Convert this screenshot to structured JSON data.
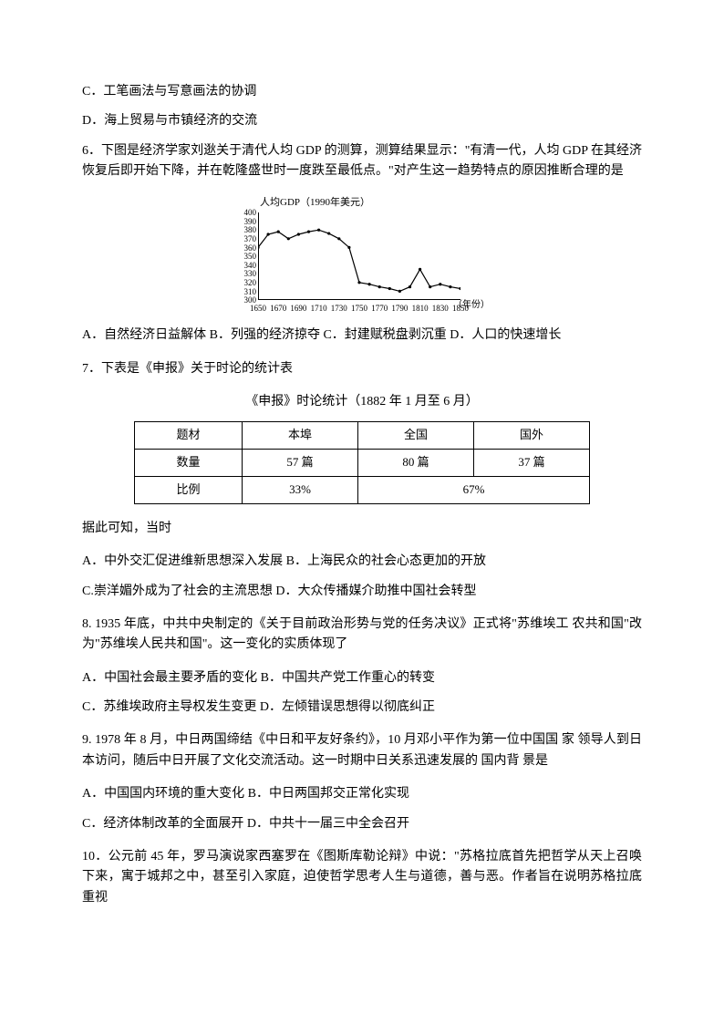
{
  "prev_options": {
    "c": "C．工笔画法与写意画法的协调",
    "d": "D．海上贸易与市镇经济的交流"
  },
  "q6": {
    "intro": "6．下图是经济学家刘逖关于清代人均 GDP 的测算，测算结果显示：\"有清一代，人均 GDP 在其经济恢复后即开始下降，并在乾隆盛世时一度跌至最低点。\"对产生这一趋势特点的原因推断合理的是",
    "chart": {
      "title": "人均GDP（1990年美元）",
      "y_ticks": [
        400,
        390,
        380,
        370,
        360,
        350,
        340,
        330,
        320,
        310,
        300
      ],
      "x_ticks": [
        1650,
        1670,
        1690,
        1710,
        1730,
        1750,
        1770,
        1790,
        1810,
        1830,
        1850
      ],
      "x_label": "（年份）",
      "data": [
        [
          1650,
          360
        ],
        [
          1660,
          375
        ],
        [
          1670,
          378
        ],
        [
          1680,
          370
        ],
        [
          1690,
          375
        ],
        [
          1700,
          378
        ],
        [
          1710,
          380
        ],
        [
          1720,
          376
        ],
        [
          1730,
          370
        ],
        [
          1740,
          360
        ],
        [
          1750,
          320
        ],
        [
          1760,
          318
        ],
        [
          1770,
          315
        ],
        [
          1780,
          313
        ],
        [
          1790,
          310
        ],
        [
          1800,
          315
        ],
        [
          1810,
          335
        ],
        [
          1820,
          315
        ],
        [
          1830,
          318
        ],
        [
          1840,
          315
        ],
        [
          1850,
          313
        ]
      ],
      "line_color": "#000000",
      "marker_color": "#000000",
      "bg": "#ffffff"
    },
    "options_line": "A．自然经济日益解体 B．列强的经济掠夺 C．封建赋税盘剥沉重 D．人口的快速增长"
  },
  "q7": {
    "intro": "7．下表是《申报》关于时论的统计表",
    "table_title": "《申报》时论统计（1882 年 1 月至 6 月）",
    "table": {
      "headers": [
        "题材",
        "本埠",
        "全国",
        "国外"
      ],
      "row1": [
        "数量",
        "57 篇",
        "80 篇",
        "37 篇"
      ],
      "row2_label": "比例",
      "row2_a": "33%",
      "row2_b": "67%"
    },
    "after": "据此可知，当时",
    "opts1": "A．中外交汇促进维新思想深入发展  B．上海民众的社会心态更加的开放",
    "opts2": "C.崇洋媚外成为了社会的主流思想  D．大众传播媒介助推中国社会转型"
  },
  "q8": {
    "intro": "8. 1935 年底，中共中央制定的《关于目前政治形势与党的任务决议》正式将\"苏维埃工 农共和国\"改为\"苏维埃人民共和国\"。这一变化的实质体现了",
    "opts1": "A．中国社会最主要矛盾的变化  B．中国共产党工作重心的转变",
    "opts2": "C．苏维埃政府主导权发生变更  D．左倾错误思想得以彻底纠正"
  },
  "q9": {
    "intro": "9. 1978 年 8 月，中日两国缔结《中日和平友好条约》，10 月邓小平作为第一位中国国 家 领导人到日本访问，随后中日开展了文化交流活动。这一时期中日关系迅速发展的 国内背 景是",
    "opts1": "A．中国国内环境的重大变化  B．中日两国邦交正常化实现",
    "opts2": "C．经济体制改革的全面展开  D．中共十一届三中全会召开"
  },
  "q10": {
    "intro": "10．公元前 45 年，罗马演说家西塞罗在《图斯库勒论辩》中说：\"苏格拉底首先把哲学从天上召唤下来，寓于城邦之中，甚至引入家庭，迫使哲学思考人生与道德，善与恶。作者旨在说明苏格拉底重视"
  }
}
